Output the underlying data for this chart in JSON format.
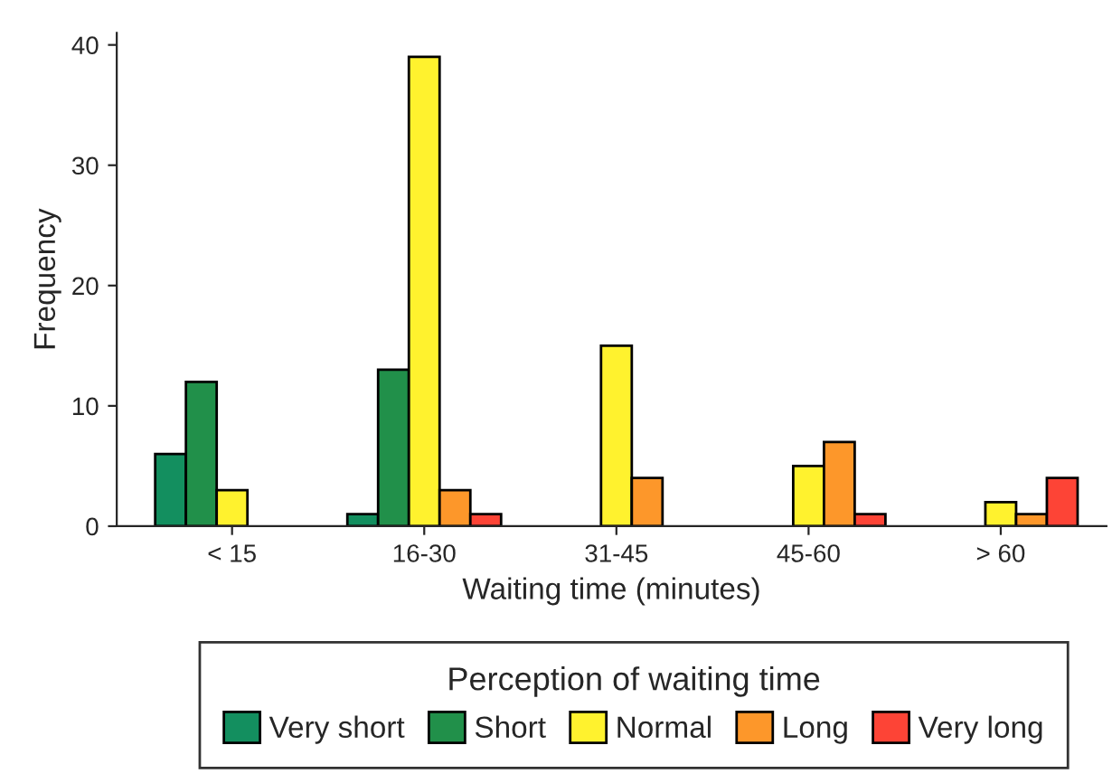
{
  "chart_data": {
    "type": "bar",
    "xlabel": "Waiting time (minutes)",
    "ylabel": "Frequency",
    "legend_title": "Perception of waiting time",
    "categories": [
      "< 15",
      "16-30",
      "31-45",
      "45-60",
      "> 60"
    ],
    "series": [
      {
        "name": "Very short",
        "color": "#138f5f",
        "values": [
          6,
          1,
          null,
          null,
          null
        ]
      },
      {
        "name": "Short",
        "color": "#21904a",
        "values": [
          12,
          13,
          null,
          null,
          null
        ]
      },
      {
        "name": "Normal",
        "color": "#fff22e",
        "values": [
          3,
          39,
          15,
          5,
          2
        ]
      },
      {
        "name": "Long",
        "color": "#fd972a",
        "values": [
          null,
          3,
          4,
          7,
          1
        ]
      },
      {
        "name": "Very long",
        "color": "#fd4436",
        "values": [
          null,
          1,
          null,
          1,
          4
        ]
      }
    ],
    "ylim": [
      0,
      41
    ],
    "yticks": [
      0,
      10,
      20,
      30,
      40
    ],
    "grid": false,
    "legend": "bottom"
  }
}
